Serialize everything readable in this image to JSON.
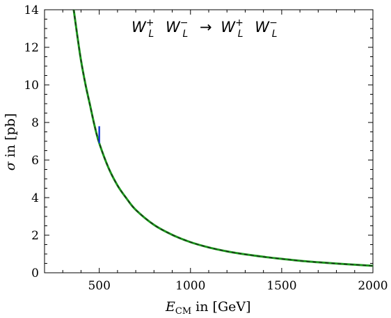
{
  "chart_data": {
    "type": "line",
    "title": "W_L^+ W_L^- → W_L^+ W_L^-",
    "title_parts": {
      "w1": "W",
      "w1_sup": "+",
      "w1_sub": "L",
      "w2": "W",
      "w2_sup": "−",
      "w2_sub": "L",
      "arrow": "→",
      "w3": "W",
      "w3_sup": "+",
      "w3_sub": "L",
      "w4": "W",
      "w4_sup": "−",
      "w4_sub": "L"
    },
    "xlabel": {
      "symbol": "E",
      "sub": "CM",
      "rest": " in [GeV]"
    },
    "ylabel": {
      "symbol": "σ",
      "rest": " in [pb]"
    },
    "xlim": [
      200,
      2000
    ],
    "ylim": [
      0,
      14
    ],
    "xticks": [
      500,
      1000,
      1500,
      2000
    ],
    "yticks": [
      0,
      2,
      4,
      6,
      8,
      10,
      12,
      14
    ],
    "grid": false,
    "series": [
      {
        "style": "solid",
        "color": "#1a9a1a",
        "x": [
          360,
          380,
          400,
          425,
          450,
          475,
          500,
          550,
          600,
          650,
          700,
          800,
          900,
          1000,
          1100,
          1200,
          1300,
          1400,
          1500,
          1600,
          1700,
          1800,
          1900,
          2000
        ],
        "y": [
          14.0,
          12.6,
          11.3,
          10.0,
          8.9,
          7.8,
          6.9,
          5.6,
          4.65,
          3.95,
          3.35,
          2.55,
          2.02,
          1.63,
          1.35,
          1.14,
          0.98,
          0.85,
          0.74,
          0.64,
          0.56,
          0.49,
          0.43,
          0.37
        ]
      },
      {
        "style": "dashed",
        "color": "#222222",
        "x": [
          360,
          380,
          400,
          425,
          450,
          475,
          500,
          550,
          600,
          650,
          700,
          800,
          900,
          1000,
          1100,
          1200,
          1300,
          1400,
          1500,
          1600,
          1700,
          1800,
          1900,
          2000
        ],
        "y": [
          14.0,
          12.6,
          11.3,
          10.0,
          8.9,
          7.8,
          6.9,
          5.6,
          4.65,
          3.95,
          3.35,
          2.55,
          2.02,
          1.63,
          1.35,
          1.14,
          0.98,
          0.85,
          0.74,
          0.64,
          0.56,
          0.49,
          0.43,
          0.37
        ]
      }
    ],
    "marker": {
      "color": "#1a3ad6",
      "x": 500,
      "y_from": 6.9,
      "y_to": 7.8
    }
  }
}
